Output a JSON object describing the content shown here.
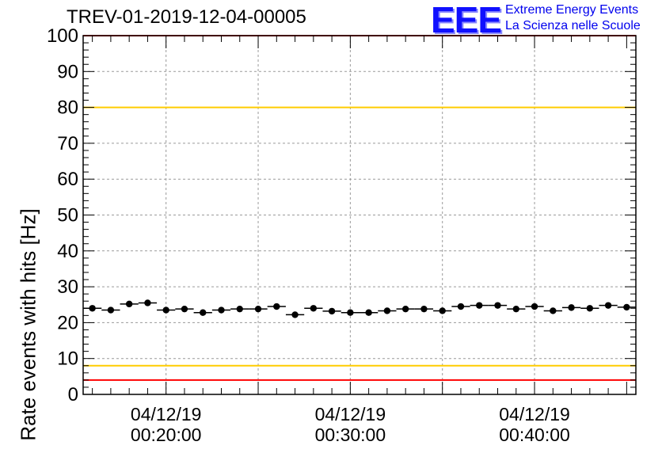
{
  "chart_data": {
    "type": "scatter",
    "title": "TREV-01-2019-12-04-00005",
    "xlabel": "",
    "ylabel": "Rate events with hits [Hz]",
    "ylim": [
      0,
      100
    ],
    "xlim_minutes": [
      15.5,
      45.5
    ],
    "yticks": [
      0,
      10,
      20,
      30,
      40,
      50,
      60,
      70,
      80,
      90,
      100
    ],
    "xticks": [
      {
        "minute": 20,
        "date": "04/12/19",
        "time": "00:20:00"
      },
      {
        "minute": 30,
        "date": "04/12/19",
        "time": "00:30:00"
      },
      {
        "minute": 40,
        "date": "04/12/19",
        "time": "00:40:00"
      }
    ],
    "grid": true,
    "series": [
      {
        "name": "rate",
        "x_minutes": [
          16,
          17,
          18,
          19,
          20,
          21,
          22,
          23,
          24,
          25,
          26,
          27,
          28,
          29,
          30,
          31,
          32,
          33,
          34,
          35,
          36,
          37,
          38,
          39,
          40,
          41,
          42,
          43,
          44,
          45
        ],
        "values": [
          24.0,
          23.5,
          25.2,
          25.5,
          23.5,
          23.8,
          22.8,
          23.5,
          23.8,
          23.8,
          24.5,
          22.2,
          24.0,
          23.2,
          22.8,
          22.8,
          23.3,
          23.8,
          23.8,
          23.3,
          24.5,
          24.8,
          24.8,
          23.8,
          24.5,
          23.3,
          24.2,
          24.0,
          24.8,
          24.3
        ]
      }
    ],
    "reference_lines": [
      {
        "name": "upper-red",
        "value": 100,
        "color": "#ff0000"
      },
      {
        "name": "upper-yellow",
        "value": 80,
        "color": "#ffcc00"
      },
      {
        "name": "lower-yellow",
        "value": 8,
        "color": "#ffcc00"
      },
      {
        "name": "lower-red",
        "value": 4,
        "color": "#ff0000"
      }
    ]
  },
  "logo": {
    "mark": "EEE",
    "line1": "Extreme Energy Events",
    "line2": "La Scienza nelle Scuole"
  }
}
